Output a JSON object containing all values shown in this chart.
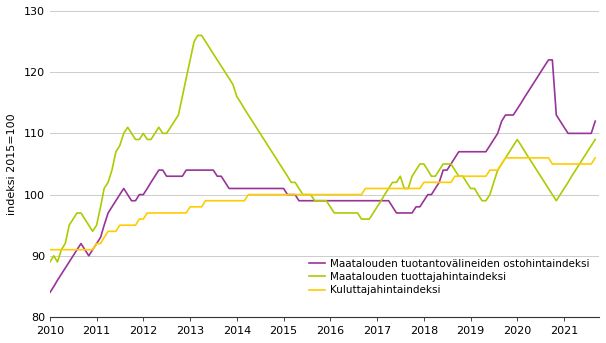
{
  "title": "",
  "ylabel": "indeksi 2015=100",
  "ylim": [
    80,
    130
  ],
  "yticks": [
    80,
    90,
    100,
    110,
    120,
    130
  ],
  "xtick_years": [
    2010,
    2011,
    2012,
    2013,
    2014,
    2015,
    2016,
    2017,
    2018,
    2019,
    2020,
    2021
  ],
  "line_colors": {
    "ostohinta": "#993399",
    "tuottaja": "#aacc00",
    "kuluttaja": "#ffcc00"
  },
  "legend_labels": [
    "Maatalouden tuotantovälineiden ostohintaindeksi",
    "Maatalouden tuottajahintaindeksi",
    "Kuluttajahintaindeksi"
  ],
  "line_width": 1.2,
  "grid_color": "#cccccc",
  "bg_color": "#ffffff",
  "ostohinta": [
    84,
    85,
    86,
    87,
    88,
    89,
    90,
    91,
    92,
    91,
    90,
    91,
    92,
    93,
    95,
    97,
    98,
    99,
    100,
    101,
    100,
    99,
    99,
    100,
    100,
    101,
    102,
    103,
    104,
    104,
    103,
    103,
    103,
    103,
    103,
    104,
    104,
    104,
    104,
    104,
    104,
    104,
    104,
    103,
    103,
    102,
    101,
    101,
    101,
    101,
    101,
    101,
    101,
    101,
    101,
    101,
    101,
    101,
    101,
    101,
    101,
    100,
    100,
    100,
    99,
    99,
    99,
    99,
    99,
    99,
    99,
    99,
    99,
    99,
    99,
    99,
    99,
    99,
    99,
    99,
    99,
    99,
    99,
    99,
    99,
    99,
    99,
    99,
    98,
    97,
    97,
    97,
    97,
    97,
    98,
    98,
    99,
    100,
    100,
    101,
    102,
    104,
    104,
    105,
    106,
    107,
    107,
    107,
    107,
    107,
    107,
    107,
    107,
    108,
    109,
    110,
    112,
    113,
    113,
    113,
    114,
    115,
    116,
    117,
    118,
    119,
    120,
    121,
    122,
    122,
    113,
    112,
    111,
    110,
    110,
    110,
    110,
    110,
    110,
    110,
    112
  ],
  "tuottaja": [
    89,
    90,
    89,
    91,
    92,
    95,
    96,
    97,
    97,
    96,
    95,
    94,
    95,
    98,
    101,
    102,
    104,
    107,
    108,
    110,
    111,
    110,
    109,
    109,
    110,
    109,
    109,
    110,
    111,
    110,
    110,
    111,
    112,
    113,
    116,
    119,
    122,
    125,
    126,
    126,
    125,
    124,
    123,
    122,
    121,
    120,
    119,
    118,
    116,
    115,
    114,
    113,
    112,
    111,
    110,
    109,
    108,
    107,
    106,
    105,
    104,
    103,
    102,
    102,
    101,
    100,
    100,
    100,
    99,
    99,
    99,
    99,
    98,
    97,
    97,
    97,
    97,
    97,
    97,
    97,
    96,
    96,
    96,
    97,
    98,
    99,
    100,
    101,
    102,
    102,
    103,
    101,
    101,
    103,
    104,
    105,
    105,
    104,
    103,
    103,
    104,
    105,
    105,
    105,
    104,
    103,
    103,
    102,
    101,
    101,
    100,
    99,
    99,
    100,
    102,
    104,
    105,
    106,
    107,
    108,
    109,
    108,
    107,
    106,
    105,
    104,
    103,
    102,
    101,
    100,
    99,
    100,
    101,
    102,
    103,
    104,
    105,
    106,
    107,
    108,
    109
  ],
  "kuluttaja": [
    91,
    91,
    91,
    91,
    91,
    91,
    91,
    91,
    91,
    91,
    91,
    91,
    92,
    92,
    93,
    94,
    94,
    94,
    95,
    95,
    95,
    95,
    95,
    96,
    96,
    97,
    97,
    97,
    97,
    97,
    97,
    97,
    97,
    97,
    97,
    97,
    98,
    98,
    98,
    98,
    99,
    99,
    99,
    99,
    99,
    99,
    99,
    99,
    99,
    99,
    99,
    100,
    100,
    100,
    100,
    100,
    100,
    100,
    100,
    100,
    100,
    100,
    100,
    100,
    100,
    100,
    100,
    100,
    100,
    100,
    100,
    100,
    100,
    100,
    100,
    100,
    100,
    100,
    100,
    100,
    100,
    101,
    101,
    101,
    101,
    101,
    101,
    101,
    101,
    101,
    101,
    101,
    101,
    101,
    101,
    101,
    102,
    102,
    102,
    102,
    102,
    102,
    102,
    102,
    103,
    103,
    103,
    103,
    103,
    103,
    103,
    103,
    103,
    104,
    104,
    104,
    105,
    106,
    106,
    106,
    106,
    106,
    106,
    106,
    106,
    106,
    106,
    106,
    106,
    105,
    105,
    105,
    105,
    105,
    105,
    105,
    105,
    105,
    105,
    105,
    106
  ]
}
